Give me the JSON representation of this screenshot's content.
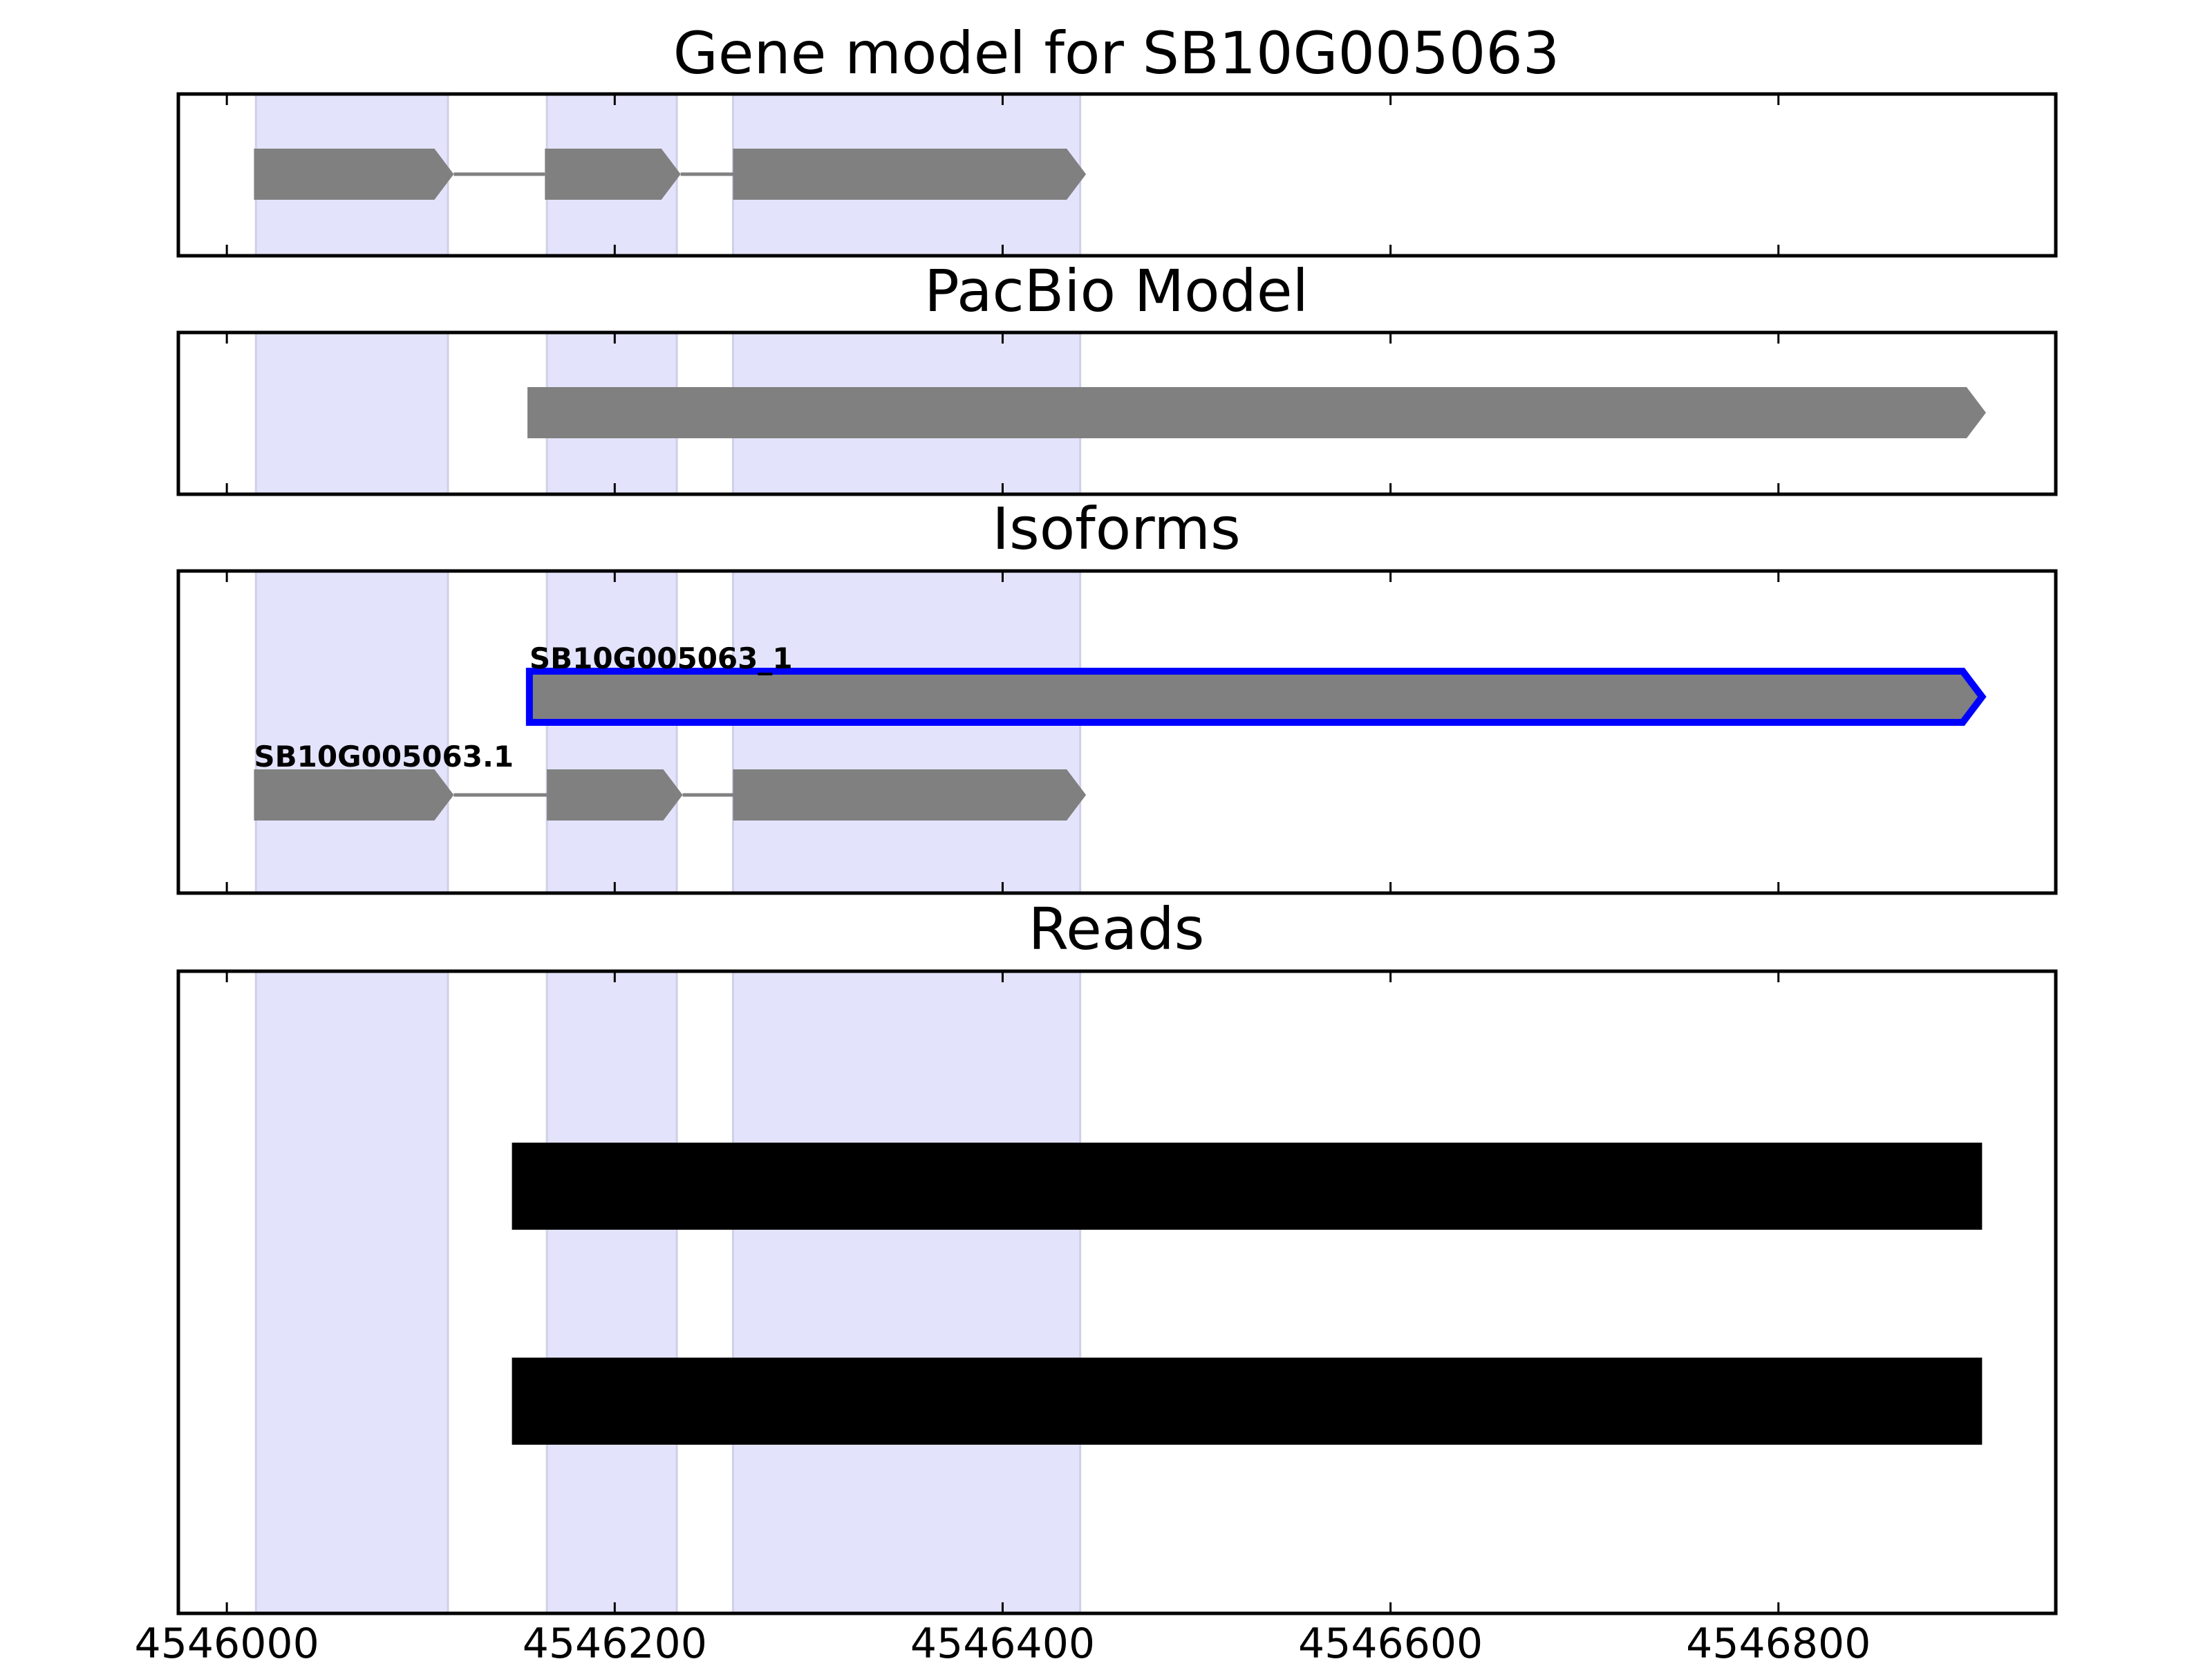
{
  "chart_data": {
    "type": "gene-track",
    "title": "Gene model for SB10G005063",
    "xlim": [
      4545975,
      4546943
    ],
    "xticks": [
      4546000,
      4546200,
      4546400,
      4546600,
      4546800
    ],
    "xtick_labels": [
      "4546000",
      "4546200",
      "4546400",
      "4546600",
      "4546800"
    ],
    "exon_highlights": [
      {
        "start": 4546015,
        "end": 4546114
      },
      {
        "start": 4546165,
        "end": 4546232
      },
      {
        "start": 4546261,
        "end": 4546440
      }
    ],
    "colors": {
      "highlight": "#e3e3fb",
      "feature": "#808080",
      "selected_outline": "#0000ff",
      "read": "#000000",
      "intron": "#808080"
    },
    "panels": [
      {
        "title": "Gene model for SB10G005063",
        "features": [
          {
            "label": "",
            "strand": "+",
            "exons": [
              [
                4546014,
                4546117
              ],
              [
                4546164,
                4546234
              ],
              [
                4546261,
                4546443
              ]
            ]
          }
        ]
      },
      {
        "title": "PacBio Model",
        "features": [
          {
            "label": "",
            "strand": "+",
            "exons": [
              [
                4546155,
                4546907
              ]
            ]
          }
        ]
      },
      {
        "title": "Isoforms",
        "features": [
          {
            "label": "SB10G005063_1",
            "strand": "+",
            "selected": true,
            "exons": [
              [
                4546156,
                4546905
              ]
            ]
          },
          {
            "label": "SB10G005063.1",
            "strand": "+",
            "selected": false,
            "exons": [
              [
                4546014,
                4546117
              ],
              [
                4546165,
                4546235
              ],
              [
                4546261,
                4546443
              ]
            ]
          }
        ]
      },
      {
        "title": "Reads",
        "reads": [
          {
            "start": 4546147,
            "end": 4546905
          },
          {
            "start": 4546147,
            "end": 4546905
          }
        ]
      }
    ]
  }
}
